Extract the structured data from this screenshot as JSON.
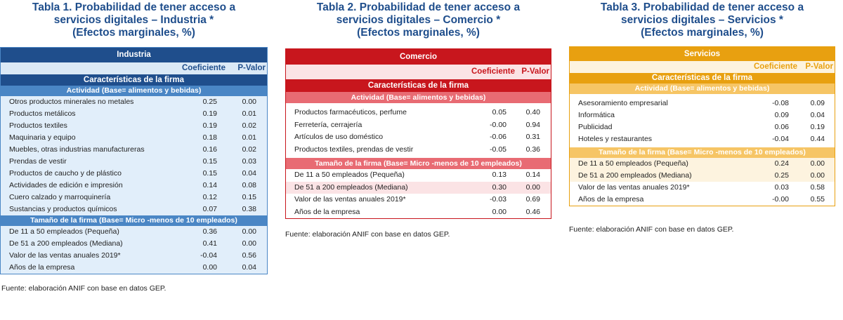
{
  "tables": [
    {
      "title_lines": [
        "Tabla 1. Probabilidad de tener acceso a",
        "servicios digitales – Industria *",
        "(Efectos marginales, %)"
      ],
      "header": "Industria",
      "col1": "Coeficiente",
      "col2": "P-Valor",
      "section": "Características de la firma",
      "activity_label": "Actividad (Base= alimentos y bebidas)",
      "activity_rows": [
        {
          "label": "Otros productos minerales no metales",
          "coef": "0.25",
          "p": "0.00"
        },
        {
          "label": "Productos metálicos",
          "coef": "0.19",
          "p": "0.01"
        },
        {
          "label": "Productos textiles",
          "coef": "0.19",
          "p": "0.02"
        },
        {
          "label": "Maquinaria y equipo",
          "coef": "0.18",
          "p": "0.01"
        },
        {
          "label": "Muebles, otras industrias manufactureras",
          "coef": "0.16",
          "p": "0.02"
        },
        {
          "label": "Prendas de vestir",
          "coef": "0.15",
          "p": "0.03"
        },
        {
          "label": "Productos de caucho y de plástico",
          "coef": "0.15",
          "p": "0.04"
        },
        {
          "label": "Actividades de edición e impresión",
          "coef": "0.14",
          "p": "0.08"
        },
        {
          "label": "Cuero calzado y marroquinería",
          "coef": "0.12",
          "p": "0.15"
        },
        {
          "label": "Sustancias y productos químicos",
          "coef": "0.07",
          "p": "0.38"
        }
      ],
      "size_label": "Tamaño de la firma (Base= Micro -menos de 10 empleados)",
      "size_rows": [
        {
          "label": "De 11 a 50 empleados (Pequeña)",
          "coef": "0.36",
          "p": "0.00"
        },
        {
          "label": "De 51 a 200 empleados (Mediana)",
          "coef": "0.41",
          "p": "0.00"
        },
        {
          "label": "Valor de las ventas anuales 2019*",
          "coef": "-0.04",
          "p": "0.56"
        },
        {
          "label": "Años de la empresa",
          "coef": "0.00",
          "p": "0.04"
        }
      ],
      "source": "Fuente: elaboración ANIF con base en datos GEP.",
      "colors": {
        "bar": "#1f4e8c",
        "subbar": "#4a86c5",
        "subbar_text": "#ffffff",
        "colhead_bg": "#dbe9f6",
        "colhead_text": "#1f4e8c",
        "row_bg": "#e1eefa",
        "row_alt": "#e1eefa",
        "border": "#4a86c5",
        "title": "#1f4e8c"
      }
    },
    {
      "title_lines": [
        "Tabla 2. Probabilidad de tener acceso a",
        "servicios digitales – Comercio *",
        "(Efectos marginales, %)"
      ],
      "header": "Comercio",
      "col1": "Coeficiente",
      "col2": "P-Valor",
      "section": "Características de la firma",
      "activity_label": "Actividad (Base= alimentos y bebidas)",
      "activity_rows": [
        {
          "label": "Productos farmacéuticos, perfume",
          "coef": "0.05",
          "p": "0.40"
        },
        {
          "label": "Ferretería, cerrajería",
          "coef": "-0.00",
          "p": "0.94"
        },
        {
          "label": "Artículos de uso doméstico",
          "coef": "-0.06",
          "p": "0.31"
        },
        {
          "label": "Productos textiles, prendas de vestir",
          "coef": "-0.05",
          "p": "0.36"
        }
      ],
      "size_label": "Tamaño de la firma (Base= Micro -menos de 10 empleados)",
      "size_rows": [
        {
          "label": "De 11 a 50 empleados (Pequeña)",
          "coef": "0.13",
          "p": "0.14"
        },
        {
          "label": "De 51 a 200 empleados (Mediana)",
          "coef": "0.30",
          "p": "0.00"
        },
        {
          "label": "Valor de las ventas anuales 2019*",
          "coef": "-0.03",
          "p": "0.69"
        },
        {
          "label": "Años de la empresa",
          "coef": "0.00",
          "p": "0.46"
        }
      ],
      "source": "Fuente: elaboración ANIF con base en datos GEP.",
      "colors": {
        "bar": "#c8161d",
        "subbar": "#e86b73",
        "subbar_text": "#ffffff",
        "colhead_bg": "#fbe3e5",
        "colhead_text": "#c8161d",
        "row_bg": "#ffffff",
        "row_alt": "#fbe3e5",
        "border": "#c8161d",
        "title": "#1f4e8c"
      }
    },
    {
      "title_lines": [
        "Tabla 3. Probabilidad de tener acceso a",
        "servicios digitales – Servicios *",
        "(Efectos marginales, %)"
      ],
      "header": "Servicios",
      "col1": "Coeficiente",
      "col2": "P-Valor",
      "section": "Características de la firma",
      "activity_label": "Actividad (Base= alimentos y bebidas)",
      "activity_rows": [
        {
          "label": "Asesoramiento empresarial",
          "coef": "-0.08",
          "p": "0.09"
        },
        {
          "label": "Informática",
          "coef": "0.09",
          "p": "0.04"
        },
        {
          "label": "Publicidad",
          "coef": "0.06",
          "p": "0.19"
        },
        {
          "label": "Hoteles y restaurantes",
          "coef": "-0.04",
          "p": "0.44"
        }
      ],
      "size_label": "Tamaño de la firma (Base= Micro -menos de 10 empleados)",
      "size_rows": [
        {
          "label": "De 11 a 50 empleados (Pequeña)",
          "coef": "0.24",
          "p": "0.00"
        },
        {
          "label": "De 51 a 200 empleados (Mediana)",
          "coef": "0.25",
          "p": "0.00"
        },
        {
          "label": "Valor de las ventas anuales 2019*",
          "coef": "0.03",
          "p": "0.58"
        },
        {
          "label": "Años de la empresa",
          "coef": "-0.00",
          "p": "0.55"
        }
      ],
      "source": "Fuente: elaboración ANIF con base en datos GEP.",
      "colors": {
        "bar": "#e8a010",
        "subbar": "#f6c565",
        "subbar_text": "#ffffff",
        "colhead_bg": "#fdf3df",
        "colhead_text": "#e8a010",
        "row_bg": "#ffffff",
        "row_alt": "#fdf3df",
        "border": "#e8a010",
        "title": "#1f4e8c"
      }
    }
  ]
}
